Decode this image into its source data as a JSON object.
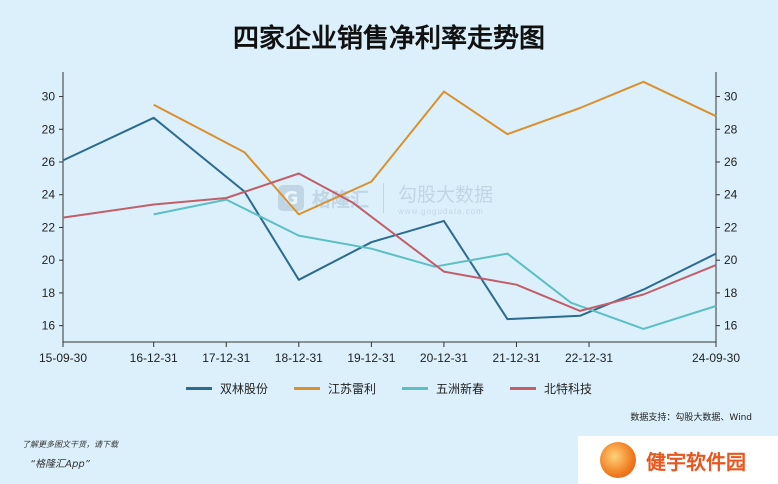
{
  "chart_data": {
    "type": "line",
    "title": "四家企业销售净利率走势图",
    "x_tick_labels": [
      "15-09-30",
      "16-12-31",
      "17-12-31",
      "18-12-31",
      "19-12-31",
      "20-12-31",
      "21-12-31",
      "22-12-31",
      "24-09-30"
    ],
    "x_tick_positions": [
      0,
      5,
      9,
      13,
      17,
      21,
      25,
      29,
      36
    ],
    "x_range": [
      0,
      36
    ],
    "ylim": [
      15,
      31.5
    ],
    "y_ticks": [
      16,
      18,
      20,
      22,
      24,
      26,
      28,
      30
    ],
    "grid": false,
    "legend_position": "bottom",
    "series": [
      {
        "name": "双林股份",
        "color": "#2b6a91",
        "points": [
          [
            0,
            26.1
          ],
          [
            5,
            28.7
          ],
          [
            10,
            24.2
          ],
          [
            13,
            18.8
          ],
          [
            17,
            21.1
          ],
          [
            21,
            22.4
          ],
          [
            24.5,
            16.4
          ],
          [
            28.5,
            16.6
          ],
          [
            32,
            18.2
          ],
          [
            36,
            20.4
          ]
        ]
      },
      {
        "name": "江苏雷利",
        "color": "#d9902e",
        "points": [
          [
            5,
            29.5
          ],
          [
            10,
            26.6
          ],
          [
            13,
            22.8
          ],
          [
            17,
            24.8
          ],
          [
            21,
            30.3
          ],
          [
            24.5,
            27.7
          ],
          [
            28.5,
            29.3
          ],
          [
            32,
            30.9
          ],
          [
            36,
            28.8
          ]
        ]
      },
      {
        "name": "五洲新春",
        "color": "#5bbfc4",
        "points": [
          [
            5,
            22.8
          ],
          [
            9,
            23.7
          ],
          [
            13,
            21.5
          ],
          [
            17,
            20.7
          ],
          [
            20.5,
            19.6
          ],
          [
            24.5,
            20.4
          ],
          [
            28,
            17.4
          ],
          [
            32,
            15.8
          ],
          [
            36,
            17.2
          ]
        ]
      },
      {
        "name": "北特科技",
        "color": "#c25e6a",
        "points": [
          [
            0,
            22.6
          ],
          [
            5,
            23.4
          ],
          [
            9,
            23.8
          ],
          [
            13,
            25.3
          ],
          [
            16,
            23.5
          ],
          [
            21,
            19.3
          ],
          [
            25,
            18.5
          ],
          [
            28.5,
            16.9
          ],
          [
            32,
            17.9
          ],
          [
            36,
            19.7
          ]
        ]
      }
    ]
  },
  "source_text": "数据支持：勾股大数据、Wind",
  "footer_note": "了解更多图文干货，请下载",
  "footer_app": "“格隆汇App”",
  "watermark": {
    "logo_letter": "G",
    "name": "格隆汇",
    "brand": "勾股大数据",
    "url": "www.gogudata.com"
  },
  "badge_text": "健宇软件园",
  "background_color": "#dcf0fb",
  "axis_color": "#333333"
}
